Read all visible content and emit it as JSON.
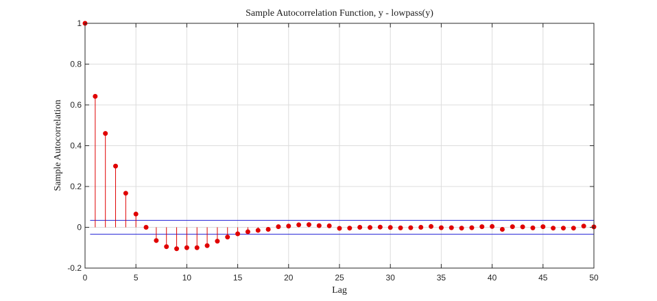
{
  "chart_data": {
    "type": "stem",
    "title": "Sample Autocorrelation Function, y - lowpass(y)",
    "xlabel": "Lag",
    "ylabel": "Sample Autocorrelation",
    "xlim": [
      0,
      50
    ],
    "ylim": [
      -0.2,
      1
    ],
    "xticks": [
      0,
      5,
      10,
      15,
      20,
      25,
      30,
      35,
      40,
      45,
      50
    ],
    "yticks": [
      -0.2,
      0,
      0.2,
      0.4,
      0.6,
      0.8,
      1
    ],
    "ytick_labels": [
      "-0.2",
      "0",
      "0.2",
      "0.4",
      "0.6",
      "0.8",
      "1"
    ],
    "grid": true,
    "confidence_bound": 0.034,
    "colors": {
      "stem": "#e00000",
      "bounds": "#1f1fd6",
      "grid": "#dcdcdc",
      "axes": "#262626"
    },
    "x": [
      0,
      1,
      2,
      3,
      4,
      5,
      6,
      7,
      8,
      9,
      10,
      11,
      12,
      13,
      14,
      15,
      16,
      17,
      18,
      19,
      20,
      21,
      22,
      23,
      24,
      25,
      26,
      27,
      28,
      29,
      30,
      31,
      32,
      33,
      34,
      35,
      36,
      37,
      38,
      39,
      40,
      41,
      42,
      43,
      44,
      45,
      46,
      47,
      48,
      49,
      50
    ],
    "values": [
      1.0,
      0.642,
      0.46,
      0.3,
      0.167,
      0.065,
      0.0,
      -0.065,
      -0.095,
      -0.105,
      -0.1,
      -0.1,
      -0.09,
      -0.068,
      -0.048,
      -0.032,
      -0.022,
      -0.015,
      -0.01,
      0.003,
      0.006,
      0.012,
      0.013,
      0.008,
      0.007,
      -0.005,
      -0.004,
      0.0,
      -0.001,
      0.001,
      -0.001,
      -0.003,
      -0.002,
      0.0,
      0.004,
      -0.002,
      -0.002,
      -0.004,
      -0.002,
      0.003,
      0.004,
      -0.01,
      0.003,
      0.002,
      -0.003,
      0.003,
      -0.004,
      -0.004,
      -0.004,
      0.006,
      0.002
    ]
  }
}
